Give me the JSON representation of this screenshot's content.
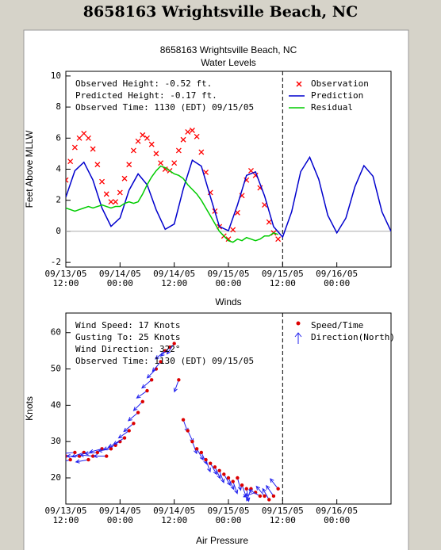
{
  "header": {
    "title": "8658163 Wrightsville Beach, NC"
  },
  "next_section_title": "Air Pressure",
  "chart_data": [
    {
      "type": "line",
      "title": "8658163 Wrightsville Beach, NC",
      "subtitle": "Water Levels",
      "y_label": "Feet Above MLLW",
      "xlim": [
        0,
        72
      ],
      "xticks": [
        {
          "value": 0,
          "label": "09/13/05\n12:00"
        },
        {
          "value": 12,
          "label": "09/14/05\n00:00"
        },
        {
          "value": 24,
          "label": "09/14/05\n12:00"
        },
        {
          "value": 36,
          "label": "09/15/05\n00:00"
        },
        {
          "value": 48,
          "label": "09/15/05\n12:00"
        },
        {
          "value": 60,
          "label": "09/16/05\n00:00"
        }
      ],
      "ylim": [
        -2.3,
        10.3
      ],
      "yticks": [
        -2,
        0,
        2,
        4,
        6,
        8,
        10
      ],
      "hline": 0,
      "vline": 48,
      "annotations": [
        "Observed Height:  -0.52 ft.",
        "Predicted Height:  -0.17 ft.",
        "Observed Time: 1130 (EDT) 09/15/05"
      ],
      "series": [
        {
          "name": "Observation",
          "color": "#ff0000",
          "marker": "x",
          "x": [
            0,
            1,
            2,
            3,
            4,
            5,
            6,
            7,
            8,
            9,
            10,
            11,
            12,
            13,
            14,
            15,
            16,
            17,
            18,
            19,
            20,
            21,
            22,
            23,
            24,
            25,
            26,
            27,
            28,
            29,
            30,
            31,
            32,
            33,
            34,
            35,
            36,
            37,
            38,
            39,
            40,
            41,
            42,
            43,
            44,
            45,
            46,
            47
          ],
          "values": [
            3.3,
            4.5,
            5.4,
            6.0,
            6.3,
            6.0,
            5.3,
            4.3,
            3.2,
            2.4,
            1.9,
            1.9,
            2.5,
            3.4,
            4.3,
            5.2,
            5.8,
            6.2,
            6.0,
            5.6,
            5.0,
            4.4,
            4.0,
            3.9,
            4.4,
            5.2,
            5.9,
            6.4,
            6.5,
            6.1,
            5.1,
            3.8,
            2.5,
            1.3,
            0.3,
            -0.3,
            -0.5,
            0.1,
            1.2,
            2.3,
            3.3,
            3.9,
            3.6,
            2.8,
            1.7,
            0.6,
            -0.1,
            -0.5
          ]
        },
        {
          "name": "Prediction",
          "color": "#0000cd",
          "marker": "line",
          "x": [
            0,
            2,
            4,
            6,
            8,
            10,
            12,
            14,
            16,
            18,
            20,
            22,
            24,
            26,
            28,
            30,
            32,
            34,
            36,
            38,
            40,
            42,
            44,
            46,
            48,
            50,
            52,
            54,
            56,
            58,
            60,
            62,
            64,
            66,
            68,
            70,
            72
          ],
          "values": [
            2.2,
            3.9,
            4.45,
            3.3,
            1.5,
            0.32,
            0.86,
            2.65,
            3.7,
            3.0,
            1.39,
            0.13,
            0.47,
            2.73,
            4.58,
            4.2,
            2.23,
            0.31,
            0.04,
            1.7,
            3.6,
            3.83,
            2.28,
            0.3,
            -0.37,
            1.26,
            3.84,
            4.77,
            3.35,
            1.03,
            -0.1,
            0.85,
            2.87,
            4.23,
            3.55,
            1.25,
            0.0
          ]
        },
        {
          "name": "Residual",
          "color": "#00cc00",
          "marker": "line",
          "x": [
            0,
            1,
            2,
            3,
            4,
            5,
            6,
            7,
            8,
            9,
            10,
            11,
            12,
            13,
            14,
            15,
            16,
            17,
            18,
            19,
            20,
            21,
            22,
            23,
            24,
            25,
            26,
            27,
            28,
            29,
            30,
            31,
            32,
            33,
            34,
            35,
            36,
            37,
            38,
            39,
            40,
            41,
            42,
            43,
            44,
            45,
            46,
            47
          ],
          "values": [
            1.5,
            1.4,
            1.3,
            1.4,
            1.5,
            1.6,
            1.5,
            1.6,
            1.7,
            1.6,
            1.5,
            1.6,
            1.6,
            1.8,
            1.9,
            1.8,
            1.9,
            2.4,
            3.0,
            3.5,
            3.9,
            4.2,
            4.1,
            3.9,
            3.7,
            3.6,
            3.4,
            3.0,
            2.7,
            2.4,
            2.0,
            1.5,
            1.0,
            0.5,
            0.0,
            -0.3,
            -0.6,
            -0.7,
            -0.5,
            -0.6,
            -0.4,
            -0.5,
            -0.6,
            -0.5,
            -0.3,
            -0.3,
            -0.1,
            -0.2
          ]
        }
      ]
    },
    {
      "type": "scatter",
      "title": "Winds",
      "y_label": "Knots",
      "xlim": [
        0,
        72
      ],
      "xticks": [
        {
          "value": 0,
          "label": "09/13/05\n12:00"
        },
        {
          "value": 12,
          "label": "09/14/05\n00:00"
        },
        {
          "value": 24,
          "label": "09/14/05\n12:00"
        },
        {
          "value": 36,
          "label": "09/15/05\n00:00"
        },
        {
          "value": 48,
          "label": "09/15/05\n12:00"
        },
        {
          "value": 60,
          "label": "09/16/05\n00:00"
        }
      ],
      "ylim": [
        12.8,
        65.4
      ],
      "yticks": [
        20,
        30,
        40,
        50,
        60
      ],
      "vline": 48,
      "annotations": [
        "Wind Speed: 17 Knots",
        "Gusting To: 25 Knots",
        "Wind Direction: 322°",
        "Observed Time: 1130 (EDT) 09/15/05"
      ],
      "series": [
        {
          "name": "Speed/Time",
          "color": "#dd0000",
          "marker": "dot",
          "x": [
            0,
            1,
            2,
            3,
            4,
            5,
            6,
            7,
            8,
            9,
            10,
            11,
            12,
            13,
            14,
            15,
            16,
            17,
            18,
            19,
            20,
            21,
            22,
            23,
            24,
            25,
            26,
            27,
            28,
            29,
            30,
            31,
            32,
            33,
            34,
            35,
            36,
            37,
            38,
            39,
            40,
            41,
            42,
            43,
            44,
            45,
            46,
            47
          ],
          "values": [
            26,
            25,
            27,
            26,
            27,
            25,
            26,
            27,
            28,
            26,
            28,
            29,
            30,
            31,
            33,
            35,
            38,
            41,
            44,
            47,
            50,
            52,
            55,
            56,
            57,
            47,
            36,
            33,
            30,
            28,
            27,
            25,
            24,
            23,
            22,
            21,
            20,
            19,
            20,
            18,
            17,
            17,
            16,
            15,
            15,
            14,
            15,
            17
          ]
        }
      ],
      "arrows": {
        "name": "Direction(North)",
        "color": "#2222ee",
        "values": [
          260,
          255,
          265,
          270,
          250,
          260,
          275,
          265,
          255,
          270,
          260,
          250,
          245,
          240,
          235,
          230,
          230,
          225,
          235,
          230,
          225,
          220,
          230,
          225,
          215,
          200,
          160,
          155,
          160,
          150,
          155,
          160,
          150,
          155,
          160,
          150,
          155,
          160,
          165,
          160,
          170,
          200,
          250,
          300,
          320,
          330,
          325,
          322
        ]
      }
    }
  ]
}
